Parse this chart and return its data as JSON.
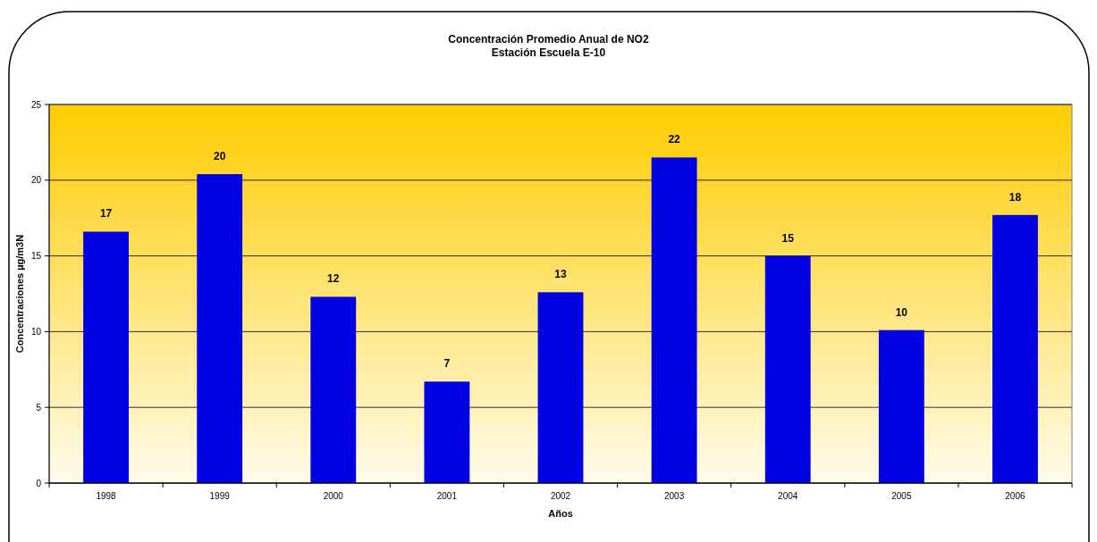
{
  "chart_data": {
    "type": "bar",
    "title": "Concentración Promedio Anual de NO2",
    "subtitle": "Estación Escuela E-10",
    "xlabel": "Años",
    "ylabel": "Concentraciones µg/m3N",
    "categories": [
      "1998",
      "1999",
      "2000",
      "2001",
      "2002",
      "2003",
      "2004",
      "2005",
      "2006"
    ],
    "values": [
      16.6,
      20.4,
      12.3,
      6.7,
      12.6,
      21.5,
      15.0,
      10.1,
      17.7
    ],
    "value_labels": [
      "17",
      "20",
      "12",
      "7",
      "13",
      "22",
      "15",
      "10",
      "18"
    ],
    "color": "#0000e0",
    "ylim": [
      0,
      25
    ],
    "yticks": [
      0,
      5,
      10,
      15,
      20,
      25
    ],
    "grid": "y"
  }
}
